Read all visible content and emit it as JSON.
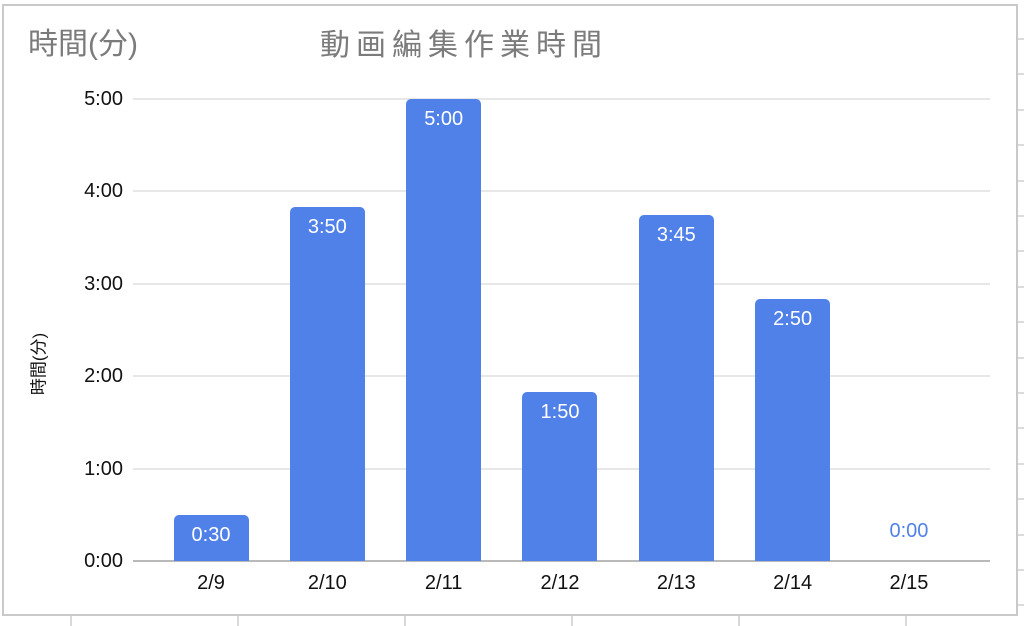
{
  "corner_label": "時間(分)",
  "chart_data": {
    "type": "bar",
    "title": "動画編集作業時間",
    "xlabel": "",
    "ylabel": "時間(分)",
    "categories": [
      "2/9",
      "2/10",
      "2/11",
      "2/12",
      "2/13",
      "2/14",
      "2/15"
    ],
    "values_hhmm": [
      "0:30",
      "3:50",
      "5:00",
      "1:50",
      "3:45",
      "2:50",
      "0:00"
    ],
    "values_minutes": [
      30,
      230,
      300,
      110,
      225,
      170,
      0
    ],
    "y_ticks": [
      "0:00",
      "1:00",
      "2:00",
      "3:00",
      "4:00",
      "5:00"
    ],
    "ylim_minutes": [
      0,
      300
    ],
    "grid": true,
    "legend_position": "none",
    "bar_color": "#5081e8",
    "zero_label_color": "#5081e8",
    "title_color": "#7b7b7b",
    "axis_text_color": "#111111"
  }
}
